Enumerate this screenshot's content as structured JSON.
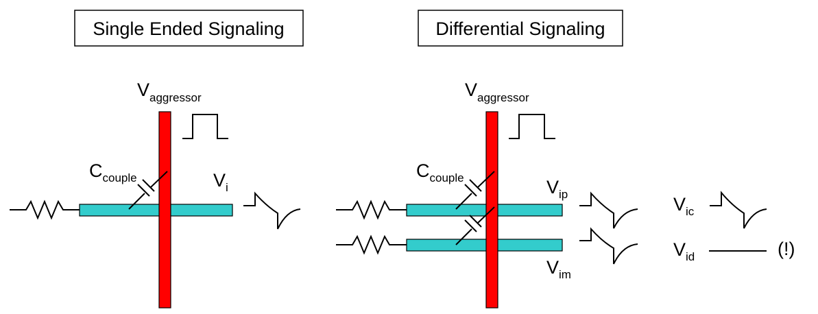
{
  "panels": {
    "single": {
      "title": "Single Ended Signaling",
      "aggressor": {
        "main": "V",
        "sub": "aggressor"
      },
      "coupling": {
        "main": "C",
        "sub": "couple"
      },
      "output": {
        "main": "V",
        "sub": "i"
      }
    },
    "differential": {
      "title": "Differential Signaling",
      "aggressor": {
        "main": "V",
        "sub": "aggressor"
      },
      "coupling": {
        "main": "C",
        "sub": "couple"
      },
      "plus_output": {
        "main": "V",
        "sub": "ip"
      },
      "minus_output": {
        "main": "V",
        "sub": "im"
      },
      "common_mode": {
        "main": "V",
        "sub": "ic"
      },
      "differential_mode": {
        "main": "V",
        "sub": "id"
      },
      "note": "(!)"
    }
  },
  "colors": {
    "aggressor_wire": "#ff0000",
    "victim_trace": "#33cccc",
    "outline": "#000000"
  }
}
